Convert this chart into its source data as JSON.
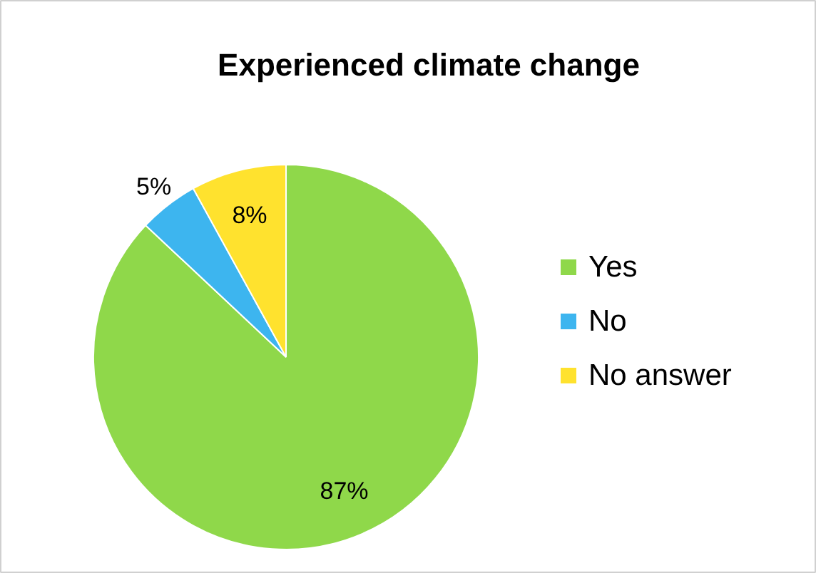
{
  "chart_data": {
    "type": "pie",
    "title": "Experienced climate change",
    "categories": [
      "Yes",
      "No",
      "No answer"
    ],
    "values": [
      87,
      5,
      8
    ],
    "colors": [
      "#8fd84a",
      "#3db5ef",
      "#ffe22e"
    ],
    "value_labels": [
      "87%",
      "5%",
      "8%"
    ],
    "legend": "right"
  }
}
